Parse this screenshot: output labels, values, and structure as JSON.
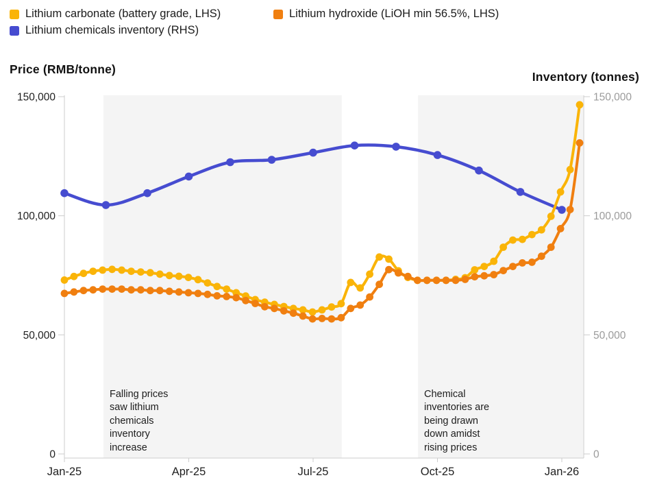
{
  "chart_data": {
    "type": "line",
    "title": "",
    "ylabel_left": "Price (RMB/tonne)",
    "ylabel_right": "Inventory (tonnes)",
    "ylim_left": [
      0,
      150000
    ],
    "ylim_right": [
      0,
      150000
    ],
    "grid": false,
    "legend_position": "top-left",
    "y_ticks": [
      {
        "value": 0,
        "label": "0"
      },
      {
        "value": 50000,
        "label": "50,000"
      },
      {
        "value": 100000,
        "label": "100,000"
      },
      {
        "value": 150000,
        "label": "150,000"
      }
    ],
    "x_ticks": [
      {
        "month_index": 0,
        "label": "Jan-25"
      },
      {
        "month_index": 3,
        "label": "Apr-25"
      },
      {
        "month_index": 6,
        "label": "Jul-25"
      },
      {
        "month_index": 9,
        "label": "Oct-25"
      },
      {
        "month_index": 12,
        "label": "Jan-26"
      }
    ],
    "style": {
      "band_color": "#f4f4f4",
      "axis_color": "#cccccc",
      "tick_color_left": "#1f1f1f",
      "tick_color_right": "#9b9b9b"
    },
    "series": [
      {
        "id": "carbonate",
        "name": "Lithium carbonate (battery grade, LHS)",
        "axis": "left",
        "cadence": "weekly",
        "color": "#FAB408",
        "values": [
          73000,
          74500,
          75800,
          76700,
          77200,
          77500,
          77200,
          76700,
          76400,
          76100,
          75500,
          74900,
          74600,
          74100,
          73200,
          71800,
          70300,
          69200,
          67700,
          66300,
          64800,
          63700,
          62800,
          61900,
          61100,
          60500,
          59600,
          60500,
          61700,
          63100,
          72000,
          69700,
          75500,
          82700,
          81800,
          76900,
          74100,
          72900,
          72900,
          72900,
          72900,
          73300,
          74000,
          77300,
          78700,
          80900,
          86800,
          89800,
          90100,
          92100,
          94100,
          99800,
          110000,
          119400,
          146600
        ]
      },
      {
        "id": "hydroxide",
        "name": "Lithium hydroxide (LiOH min 56.5%, LHS)",
        "axis": "left",
        "cadence": "weekly",
        "color": "#F07F10",
        "values": [
          67400,
          68000,
          68600,
          68900,
          69200,
          69200,
          69200,
          68900,
          68900,
          68600,
          68600,
          68300,
          68000,
          67700,
          67400,
          67000,
          66400,
          66100,
          65600,
          64400,
          63200,
          61800,
          61100,
          60100,
          59100,
          57900,
          56700,
          56900,
          56700,
          57200,
          61100,
          62500,
          65900,
          71200,
          77400,
          76000,
          74500,
          72900,
          72900,
          72900,
          72900,
          72900,
          73300,
          74400,
          74800,
          75300,
          77000,
          78700,
          80200,
          80500,
          83000,
          86800,
          94600,
          102600,
          130600
        ]
      },
      {
        "id": "inventory",
        "name": "Lithium chemicals inventory (RHS)",
        "axis": "right",
        "cadence": "monthly",
        "color": "#464CD0",
        "values": [
          109500,
          104500,
          109500,
          116500,
          122500,
          123500,
          126500,
          129500,
          129000,
          125500,
          119000,
          110000,
          102500
        ]
      }
    ],
    "bands": [
      {
        "x_start_frac": 0.075,
        "x_end_frac": 0.534,
        "annotation": "Falling prices\nsaw lithium\nchemicals\ninventory\nincrease"
      },
      {
        "x_start_frac": 0.681,
        "x_end_frac": 0.999,
        "annotation": "Chemical\ninventories are\nbeing drawn\ndown amidst\nrising prices"
      }
    ]
  }
}
